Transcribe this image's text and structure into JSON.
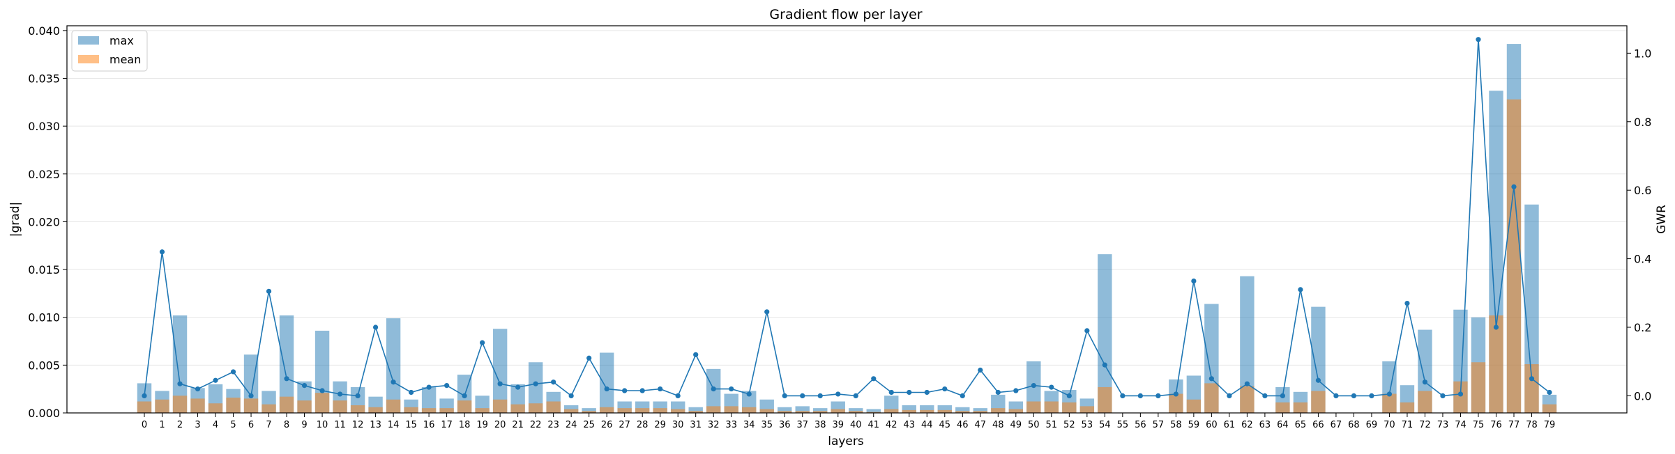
{
  "chart_data": {
    "type": "bar",
    "title": "Gradient flow per layer",
    "xlabel": "layers",
    "ylabel": "|grad|",
    "ylabel_right": "GWR",
    "ylim": [
      0,
      0.0405
    ],
    "ylim_right": [
      -0.05,
      1.08
    ],
    "yticks": [
      "0.000",
      "0.005",
      "0.010",
      "0.015",
      "0.020",
      "0.025",
      "0.030",
      "0.035",
      "0.040"
    ],
    "yticks_right": [
      "0.0",
      "0.2",
      "0.4",
      "0.6",
      "0.8",
      "1.0"
    ],
    "grid": "horizontal",
    "legend_position": "top-left",
    "categories": [
      "0",
      "1",
      "2",
      "3",
      "4",
      "5",
      "6",
      "7",
      "8",
      "9",
      "10",
      "11",
      "12",
      "13",
      "14",
      "15",
      "16",
      "17",
      "18",
      "19",
      "20",
      "21",
      "22",
      "23",
      "24",
      "25",
      "26",
      "27",
      "28",
      "29",
      "30",
      "31",
      "32",
      "33",
      "34",
      "35",
      "36",
      "37",
      "38",
      "39",
      "40",
      "41",
      "42",
      "43",
      "44",
      "45",
      "46",
      "47",
      "48",
      "49",
      "50",
      "51",
      "52",
      "53",
      "54",
      "55",
      "56",
      "57",
      "58",
      "59",
      "60",
      "61",
      "62",
      "63",
      "64",
      "65",
      "66",
      "67",
      "68",
      "69",
      "70",
      "71",
      "72",
      "73",
      "74",
      "75",
      "76",
      "77",
      "78",
      "79"
    ],
    "series": [
      {
        "name": "max",
        "axis": "left",
        "kind": "bar",
        "color": "#1f77b4",
        "values": [
          0.0031,
          0.0023,
          0.0102,
          0.0026,
          0.003,
          0.0025,
          0.0061,
          0.0023,
          0.0102,
          0.0033,
          0.0086,
          0.0033,
          0.0027,
          0.0017,
          0.0099,
          0.0014,
          0.0027,
          0.0015,
          0.004,
          0.0018,
          0.0088,
          0.003,
          0.0053,
          0.0022,
          0.0008,
          0.0005,
          0.0063,
          0.0012,
          0.0012,
          0.0012,
          0.0012,
          0.0006,
          0.0046,
          0.002,
          0.0023,
          0.0014,
          0.0006,
          0.0007,
          0.0005,
          0.0012,
          0.0005,
          0.0004,
          0.0018,
          0.0008,
          0.0008,
          0.0008,
          0.0006,
          0.0005,
          0.0019,
          0.0012,
          0.0054,
          0.0023,
          0.0024,
          0.0015,
          0.0166,
          0.0,
          0.0,
          0.0,
          0.0035,
          0.0039,
          0.0114,
          0.0,
          0.0143,
          0.0,
          0.0027,
          0.0022,
          0.0111,
          0.0,
          0.0,
          0.0,
          0.0054,
          0.0029,
          0.0087,
          0.0,
          0.0108,
          0.01,
          0.0337,
          0.0386,
          0.0218,
          0.0019
        ]
      },
      {
        "name": "mean",
        "axis": "left",
        "kind": "bar",
        "color": "#ff7f0e",
        "values": [
          0.0012,
          0.0014,
          0.0018,
          0.0015,
          0.001,
          0.0016,
          0.0015,
          0.0009,
          0.0017,
          0.0013,
          0.0021,
          0.0013,
          0.0008,
          0.0006,
          0.0014,
          0.0006,
          0.0005,
          0.0005,
          0.0013,
          0.0005,
          0.0014,
          0.0009,
          0.001,
          0.0012,
          0.0004,
          0.0002,
          0.0006,
          0.0005,
          0.0005,
          0.0005,
          0.0004,
          0.0002,
          0.0007,
          0.0007,
          0.0006,
          0.0004,
          0.0002,
          0.0002,
          0.0002,
          0.0004,
          0.0002,
          0.0001,
          0.0004,
          0.0003,
          0.0003,
          0.0003,
          0.0002,
          0.0002,
          0.0005,
          0.0004,
          0.0012,
          0.0012,
          0.0011,
          0.0007,
          0.0027,
          0.0,
          0.0,
          0.0,
          0.002,
          0.0014,
          0.0031,
          0.0,
          0.0028,
          0.0,
          0.0011,
          0.0011,
          0.0023,
          0.0,
          0.0,
          0.0,
          0.002,
          0.0011,
          0.0023,
          0.0,
          0.0033,
          0.0053,
          0.0102,
          0.0328,
          0.0051,
          0.0009
        ]
      },
      {
        "name": "GWR",
        "axis": "right",
        "kind": "line",
        "color": "#1f77b4",
        "values": [
          0.0,
          0.42,
          0.035,
          0.02,
          0.045,
          0.07,
          0.0,
          0.305,
          0.05,
          0.03,
          0.015,
          0.005,
          0.0,
          0.2,
          0.04,
          0.01,
          0.025,
          0.03,
          0.0,
          0.155,
          0.035,
          0.025,
          0.035,
          0.04,
          0.0,
          0.11,
          0.02,
          0.015,
          0.015,
          0.02,
          0.0,
          0.12,
          0.02,
          0.02,
          0.005,
          0.245,
          0.0,
          0.0,
          0.0,
          0.005,
          0.0,
          0.05,
          0.01,
          0.01,
          0.01,
          0.02,
          0.0,
          0.075,
          0.01,
          0.015,
          0.03,
          0.025,
          0.0,
          0.19,
          0.09,
          0.0,
          0.0,
          0.0,
          0.005,
          0.335,
          0.05,
          0.0,
          0.035,
          0.0,
          0.0,
          0.31,
          0.045,
          0.0,
          0.0,
          0.0,
          0.005,
          0.27,
          0.04,
          0.0,
          0.005,
          1.04,
          0.2,
          0.61,
          0.05,
          0.01
        ]
      }
    ]
  }
}
